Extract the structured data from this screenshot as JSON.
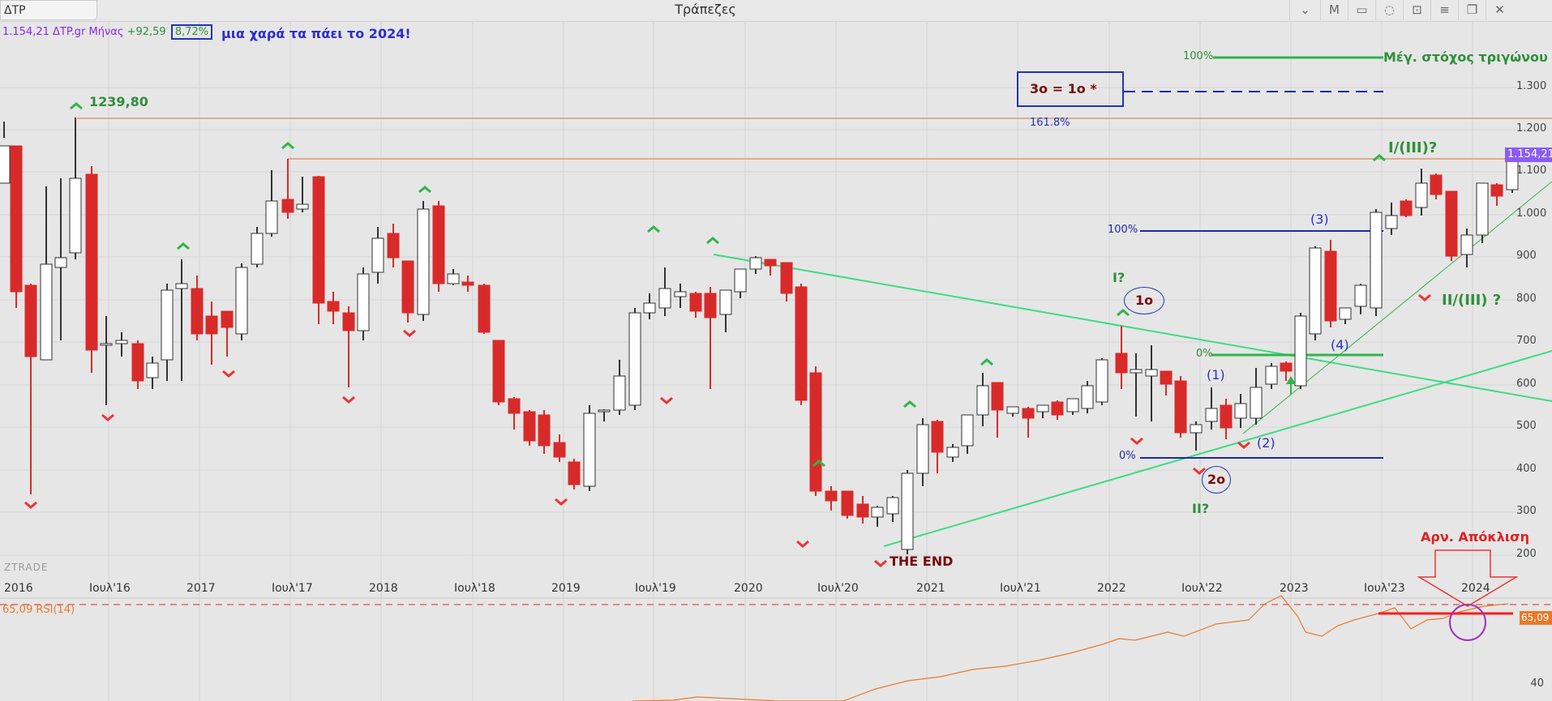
{
  "titlebar": {
    "symbol": "ΔTP",
    "title": "Τράπεζες",
    "period_button": "M"
  },
  "info": {
    "price": "1.154,21 ΔTP.gr Μήνας",
    "change": "+92,59",
    "change_pct": "8,72%",
    "note": "μια χαρά τα πάει το 2024!"
  },
  "price_axis": [
    "1.300",
    "1.200",
    "1.100",
    "1.000",
    "900",
    "800",
    "700",
    "600",
    "500",
    "400",
    "300",
    "200"
  ],
  "current_price_tag": "1.154,21",
  "time_axis": [
    "2016",
    "Ιουλ'16",
    "2017",
    "Ιουλ'17",
    "2018",
    "Ιουλ'18",
    "2019",
    "Ιουλ'19",
    "2020",
    "Ιουλ'20",
    "2021",
    "Ιουλ'21",
    "2022",
    "Ιουλ'22",
    "2023",
    "Ιουλ'23",
    "2024"
  ],
  "watermark": "ZTRADE",
  "rsi": {
    "label": "65,09 RSI(14)",
    "value": "65,09",
    "level_label": "40"
  },
  "annotations": {
    "high_label": "1239,80",
    "the_end": "THE END",
    "target_text": "3ο = 1ο *",
    "target_pct": "161.8%",
    "max_target_pct": "100%",
    "max_target_text": "Μέγ. στόχος τριγώνου",
    "wave_I": "I/(III)?",
    "wave_II": "II/(III) ?",
    "wave_I_q": "I?",
    "wave_II_q": "II?",
    "circle_1": "1ο",
    "circle_2": "2ο",
    "fib_100": "100%",
    "fib_0": "0%",
    "fib2_0": "0%",
    "w1": "(1)",
    "w2": "(2)",
    "w3": "(3)",
    "w4": "(4)",
    "divergence": "Αρν. Απόκλιση"
  },
  "colors": {
    "bull": "#ffffff",
    "bear": "#d92a2a",
    "trend": "#3ddc84",
    "fib": "#1a2aa6",
    "rsi": "#e87a2a",
    "accent": "#8b5cf6"
  }
}
